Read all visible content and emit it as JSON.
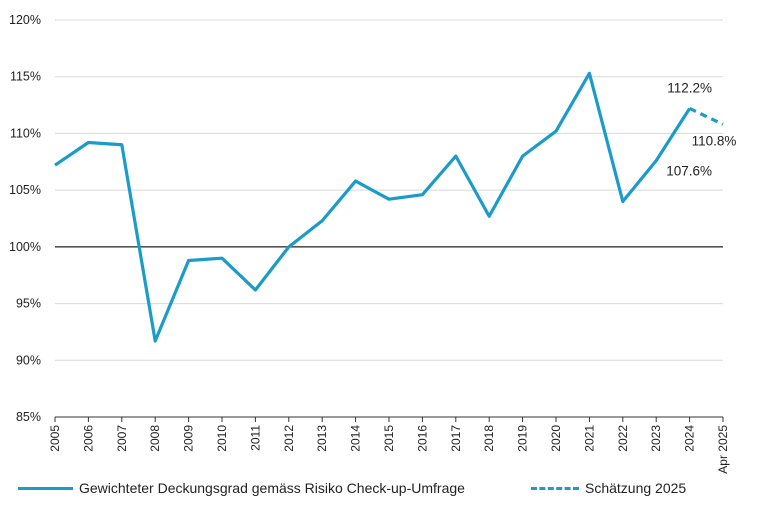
{
  "chart_data": {
    "type": "line",
    "title": "",
    "xlabel": "",
    "ylabel": "",
    "categories": [
      "2005",
      "2006",
      "2007",
      "2008",
      "2009",
      "2010",
      "2011",
      "2012",
      "2013",
      "2014",
      "2015",
      "2016",
      "2017",
      "2018",
      "2019",
      "2020",
      "2021",
      "2022",
      "2023",
      "2024",
      "Apr 2025"
    ],
    "yticks": [
      "85%",
      "90%",
      "95%",
      "100%",
      "105%",
      "110%",
      "115%",
      "120%"
    ],
    "ylim": [
      85,
      120
    ],
    "reference_line": 100,
    "series": [
      {
        "name": "Gewichteter Deckungsgrad gemäss Risiko Check-up-Umfrage",
        "style": "solid",
        "x": [
          "2005",
          "2006",
          "2007",
          "2008",
          "2009",
          "2010",
          "2011",
          "2012",
          "2013",
          "2014",
          "2015",
          "2016",
          "2017",
          "2018",
          "2019",
          "2020",
          "2021",
          "2022",
          "2023",
          "2024"
        ],
        "values": [
          107.2,
          109.2,
          109.0,
          91.7,
          98.8,
          99.0,
          96.2,
          100.0,
          102.3,
          105.8,
          104.2,
          104.6,
          108.0,
          102.7,
          108.0,
          110.2,
          115.3,
          104.0,
          107.6,
          112.2
        ]
      },
      {
        "name": "Schätzung 2025",
        "style": "dashed",
        "x": [
          "2024",
          "Apr 2025"
        ],
        "values": [
          112.2,
          110.8
        ]
      }
    ],
    "annotations": [
      {
        "text": "112.2%",
        "x": "2024",
        "y": 112.2
      },
      {
        "text": "110.8%",
        "x": "Apr 2025",
        "y": 110.8
      },
      {
        "text": "107.6%",
        "x": "2023",
        "y": 107.6
      }
    ],
    "color": "#1a9bc9",
    "grid": "horizontal",
    "legend_position": "bottom"
  },
  "legend": {
    "solid_label": "Gewichteter Deckungsgrad gemäss Risiko Check-up-Umfrage",
    "dashed_label": "Schätzung 2025"
  }
}
